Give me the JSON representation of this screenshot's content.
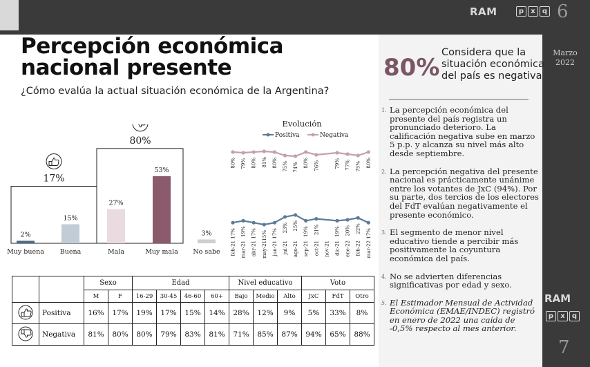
{
  "header": {
    "brand": "RAM",
    "brand_box": [
      "p",
      "x",
      "q"
    ],
    "page_left": "6",
    "page_right": "7",
    "date": [
      "Marzo",
      "2022"
    ]
  },
  "title": [
    "Percepción económica",
    "nacional presente"
  ],
  "subtitle": "¿Cómo evalúa la actual situación económica de la Argentina?",
  "highlight": {
    "value": "80%",
    "text": "Considera que la situación económica del país es negativa"
  },
  "notes": [
    {
      "num": "1.",
      "text": "La percepción económica del presente del país registra un pronunciado deterioro. La calificación negativa sube en marzo 5 p.p. y alcanza su nivel más alto desde septiembre."
    },
    {
      "num": "2.",
      "text": "La percepción negativa del presente nacional es prácticamente unánime entre los votantes de JxC (94%). Por su parte, dos tercios de los electores del FdT evalúan negativamente el presente económico."
    },
    {
      "num": "3.",
      "text": "El segmento de menor nivel educativo tiende a percibir más positivamente la coyuntura económica del país."
    },
    {
      "num": "4.",
      "text": "No se advierten diferencias significativas por edad y sexo."
    },
    {
      "num": "5.",
      "text": "El Estimador Mensual de Actividad Económica (EMAE/INDEC) registró en enero de 2022 una caída de -0,5% respecto al mes anterior."
    }
  ],
  "colors": {
    "accent": "#7b5566",
    "positive": "#5b7b98",
    "negative": "#c4a0ad",
    "bar_muy_buena": "#4d6a84",
    "bar_buena": "#c2ccd6",
    "bar_mala": "#eadbe0",
    "bar_muy_mala": "#8b5a6c",
    "bar_no_sabe": "#cfcfcf"
  },
  "chart_data": [
    {
      "type": "bar",
      "categories": [
        "Muy buena",
        "Buena",
        "Mala",
        "Muy mala",
        "No sabe"
      ],
      "values": [
        2,
        15,
        27,
        53,
        3
      ],
      "value_labels": [
        "2%",
        "15%",
        "27%",
        "53%",
        "3%"
      ],
      "groups": [
        {
          "label": "17%",
          "icon": "thumbs-up-icon"
        },
        {
          "label": "80%",
          "icon": "thumbs-down-icon"
        }
      ],
      "ylim": [
        0,
        60
      ]
    },
    {
      "type": "line",
      "title": "Evolución",
      "x": [
        "feb-21",
        "mar-21",
        "abr-21",
        "may-21",
        "jun-21",
        "jul-21",
        "ago-21",
        "sep-21",
        "oct-21",
        "nov-21",
        "dic-21",
        "ene-22",
        "feb-22",
        "mar-22"
      ],
      "series": [
        {
          "name": "Positiva",
          "values": [
            17,
            19,
            17,
            15,
            17,
            23,
            25,
            19,
            21,
            null,
            19,
            20,
            22,
            17
          ]
        },
        {
          "name": "Negativa",
          "values": [
            80,
            79,
            80,
            81,
            80,
            75,
            74,
            80,
            76,
            null,
            79,
            77,
            75,
            80
          ]
        }
      ]
    },
    {
      "type": "table",
      "groups": [
        {
          "label": "Sexo",
          "cols": [
            "M",
            "F"
          ]
        },
        {
          "label": "Edad",
          "cols": [
            "16-29",
            "30-45",
            "46-60",
            "60+"
          ]
        },
        {
          "label": "Nivel educativo",
          "cols": [
            "Bajo",
            "Medio",
            "Alto"
          ]
        },
        {
          "label": "Voto",
          "cols": [
            "JxC",
            "FdT",
            "Otro"
          ]
        }
      ],
      "rows": [
        {
          "label": "Positiva",
          "icon": "thumbs-up-icon",
          "values": [
            "16%",
            "17%",
            "19%",
            "17%",
            "15%",
            "14%",
            "28%",
            "12%",
            "9%",
            "5%",
            "33%",
            "8%"
          ]
        },
        {
          "label": "Negativa",
          "icon": "thumbs-down-icon",
          "values": [
            "81%",
            "80%",
            "80%",
            "79%",
            "83%",
            "81%",
            "71%",
            "85%",
            "87%",
            "94%",
            "65%",
            "88%"
          ]
        }
      ]
    }
  ]
}
